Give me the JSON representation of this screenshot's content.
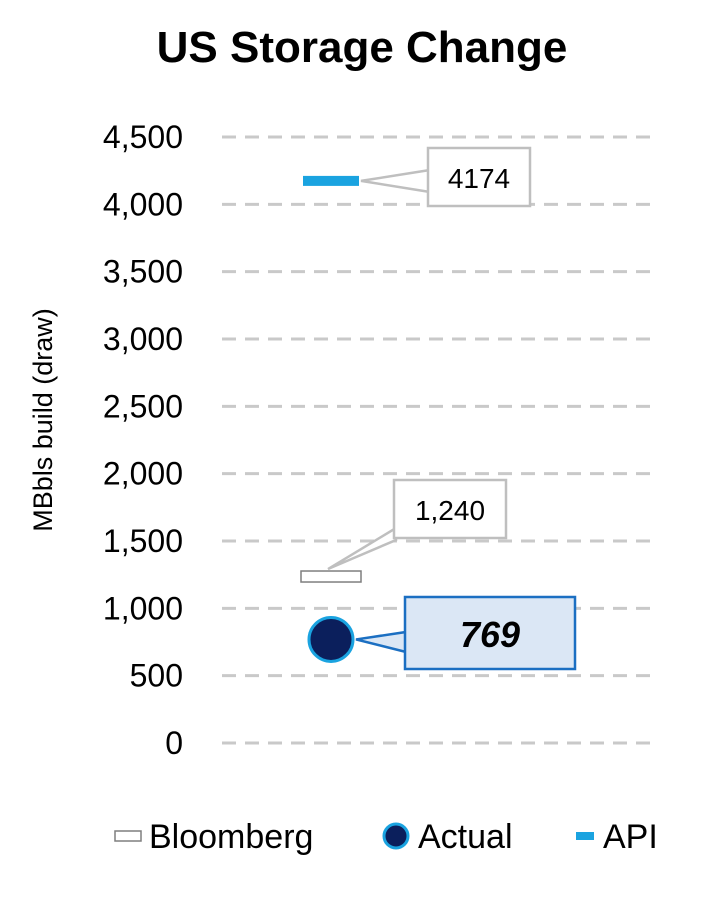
{
  "chart_data": {
    "type": "scatter",
    "title": "US Storage Change",
    "xlabel": "",
    "ylabel": "MBbls build (draw)",
    "ylim": [
      0,
      4500
    ],
    "yticks": [
      0,
      500,
      1000,
      1500,
      2000,
      2500,
      3000,
      3500,
      4000,
      4500
    ],
    "ytick_labels": [
      "0",
      "500",
      "1,000",
      "1,500",
      "2,000",
      "2,500",
      "3,000",
      "3,500",
      "4,000",
      "4,500"
    ],
    "grid": true,
    "legend_position": "bottom",
    "series": [
      {
        "name": "Bloomberg",
        "marker": "dash-outline",
        "value": 1240,
        "label": "1,240",
        "color": "#ffffff"
      },
      {
        "name": "Actual",
        "marker": "circle",
        "value": 769,
        "label": "769",
        "color": "#0b1f5c"
      },
      {
        "name": "API",
        "marker": "dash",
        "value": 4174,
        "label": "4174",
        "color": "#1aa3e0"
      }
    ]
  }
}
